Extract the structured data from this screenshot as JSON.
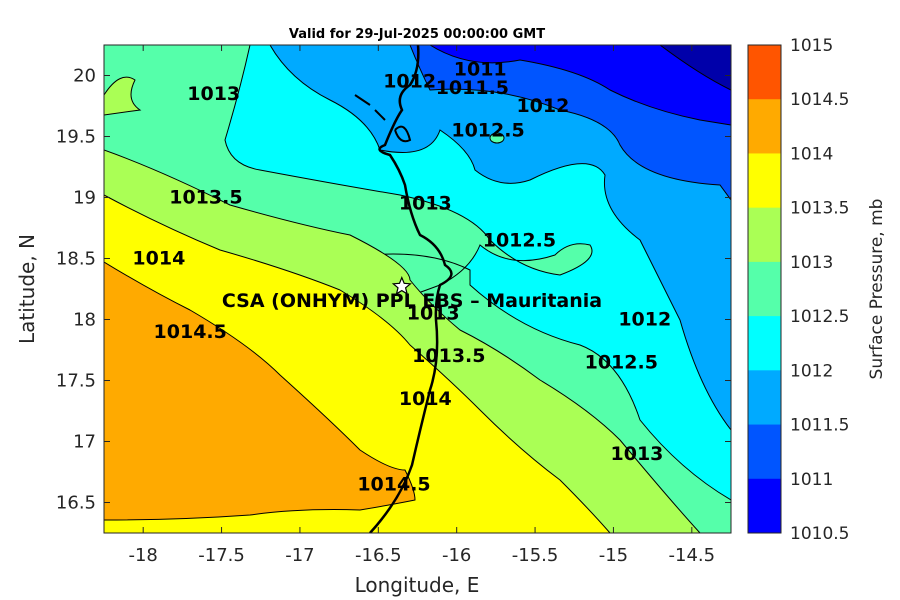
{
  "title": "Valid for 29-Jul-2025 00:00:00 GMT",
  "xlabel": "Longitude, E",
  "ylabel": "Latitude, N",
  "colorbar_label": "Surface Pressure, mb",
  "site_label": "CSA (ONHYM) PPL EBS  – Mauritania",
  "site_marker": "star-icon",
  "x_ticks": [
    "-18",
    "-17.5",
    "-17",
    "-16.5",
    "-16",
    "-15.5",
    "-15",
    "-14.5"
  ],
  "y_ticks": [
    "20",
    "19.5",
    "19",
    "18.5",
    "18",
    "17.5",
    "17",
    "16.5"
  ],
  "colorbar_ticks": [
    "1015",
    "1014.5",
    "1014",
    "1013.5",
    "1013",
    "1012.5",
    "1012",
    "1011.5",
    "1011",
    "1010.5"
  ],
  "colorbar_colors": [
    "#ff5500",
    "#ffaa00",
    "#ffff00",
    "#aaff55",
    "#55ffaa",
    "#00ffff",
    "#00aaff",
    "#0055ff",
    "#0000ff",
    "#0000aa"
  ],
  "contour_labels": [
    {
      "text": "1013",
      "lon": -17.55,
      "lat": 19.8
    },
    {
      "text": "1012",
      "lon": -16.3,
      "lat": 19.9
    },
    {
      "text": "1011",
      "lon": -15.85,
      "lat": 20.0
    },
    {
      "text": "1011.5",
      "lon": -15.9,
      "lat": 19.85
    },
    {
      "text": "1012",
      "lon": -15.45,
      "lat": 19.7
    },
    {
      "text": "1012.5",
      "lon": -15.8,
      "lat": 19.5
    },
    {
      "text": "1013.5",
      "lon": -17.6,
      "lat": 18.95
    },
    {
      "text": "1013",
      "lon": -16.2,
      "lat": 18.9
    },
    {
      "text": "1012.5",
      "lon": -15.6,
      "lat": 18.6
    },
    {
      "text": "1014",
      "lon": -17.9,
      "lat": 18.45
    },
    {
      "text": "1014.5",
      "lon": -17.7,
      "lat": 17.85
    },
    {
      "text": "1013",
      "lon": -16.15,
      "lat": 18.0
    },
    {
      "text": "1013.5",
      "lon": -16.05,
      "lat": 17.65
    },
    {
      "text": "1014",
      "lon": -16.2,
      "lat": 17.3
    },
    {
      "text": "1014.5",
      "lon": -16.4,
      "lat": 16.6
    },
    {
      "text": "1012",
      "lon": -14.8,
      "lat": 17.95
    },
    {
      "text": "1012.5",
      "lon": -14.95,
      "lat": 17.6
    },
    {
      "text": "1013",
      "lon": -14.85,
      "lat": 16.85
    }
  ],
  "map_data": {
    "type": "filled_contour",
    "variable": "Surface Pressure",
    "units": "mb",
    "lon_range": [
      -18.25,
      -14.25
    ],
    "lat_range": [
      16.25,
      20.25
    ],
    "levels": [
      1010.5,
      1011,
      1011.5,
      1012,
      1012.5,
      1013,
      1013.5,
      1014,
      1014.5,
      1015
    ],
    "site": {
      "lon": -16.35,
      "lat": 18.27
    }
  }
}
